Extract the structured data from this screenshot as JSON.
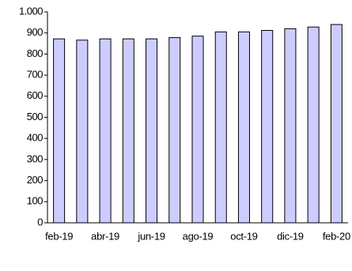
{
  "chart_data": {
    "type": "bar",
    "categories": [
      "feb-19",
      null,
      "abr-19",
      null,
      "jun-19",
      null,
      "ago-19",
      null,
      "oct-19",
      null,
      "dic-19",
      null,
      "feb-20"
    ],
    "values": [
      872,
      866,
      872,
      872,
      872,
      878,
      885,
      905,
      905,
      912,
      920,
      928,
      940
    ],
    "color": "#ccccff",
    "ylim": [
      0,
      1000
    ],
    "yticks": [
      0,
      100,
      200,
      300,
      400,
      500,
      600,
      700,
      800,
      900,
      {
        "value": 1000,
        "label": "1.000"
      }
    ],
    "grid": false
  }
}
